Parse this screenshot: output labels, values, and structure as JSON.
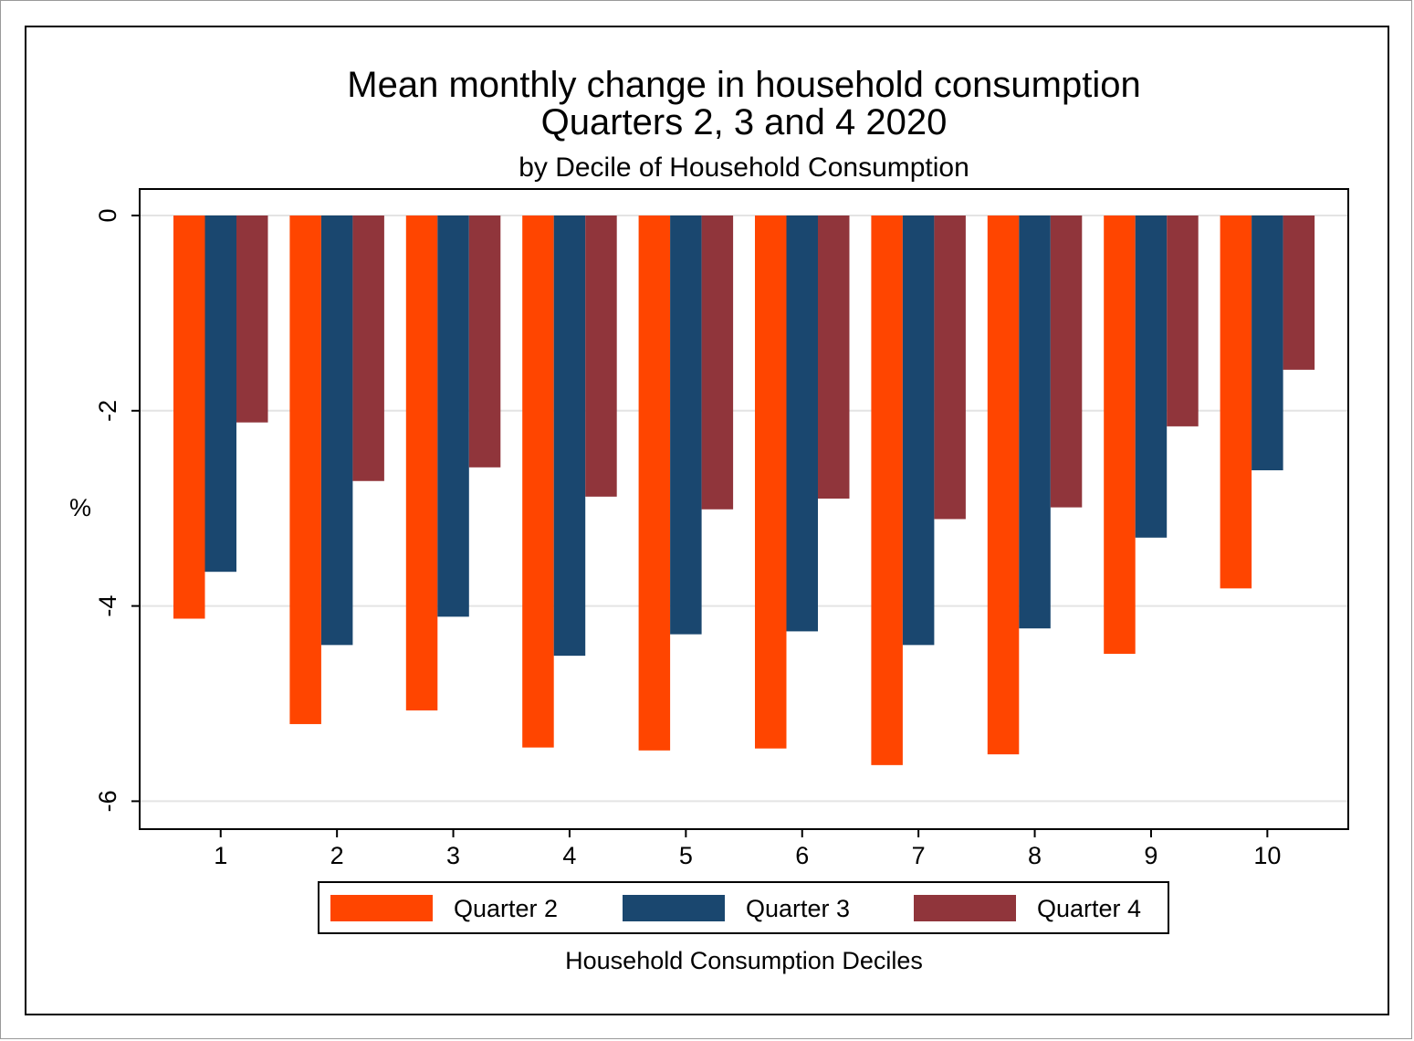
{
  "chart_data": {
    "type": "bar",
    "title_lines": [
      "Mean monthly change in household consumption",
      "Quarters 2, 3 and 4 2020"
    ],
    "subtitle": "by Decile of Household Consumption",
    "xlabel": "Household Consumption Deciles",
    "ylabel": "%",
    "categories": [
      "1",
      "2",
      "3",
      "4",
      "5",
      "6",
      "7",
      "8",
      "9",
      "10"
    ],
    "y_ticks": [
      0,
      -2,
      -4,
      -6
    ],
    "ylim": [
      -6.3,
      0.27
    ],
    "grid": true,
    "legend_position": "bottom",
    "series": [
      {
        "name": "Quarter 2",
        "color": "#ff4500",
        "values": [
          -4.13,
          -5.21,
          -5.07,
          -5.45,
          -5.48,
          -5.46,
          -5.63,
          -5.52,
          -4.49,
          -3.82
        ]
      },
      {
        "name": "Quarter 3",
        "color": "#1a476f",
        "values": [
          -3.65,
          -4.4,
          -4.11,
          -4.51,
          -4.29,
          -4.26,
          -4.4,
          -4.23,
          -3.3,
          -2.61
        ]
      },
      {
        "name": "Quarter 4",
        "color": "#90353b",
        "values": [
          -2.12,
          -2.72,
          -2.58,
          -2.88,
          -3.01,
          -2.9,
          -3.11,
          -2.99,
          -2.16,
          -1.58
        ]
      }
    ]
  }
}
